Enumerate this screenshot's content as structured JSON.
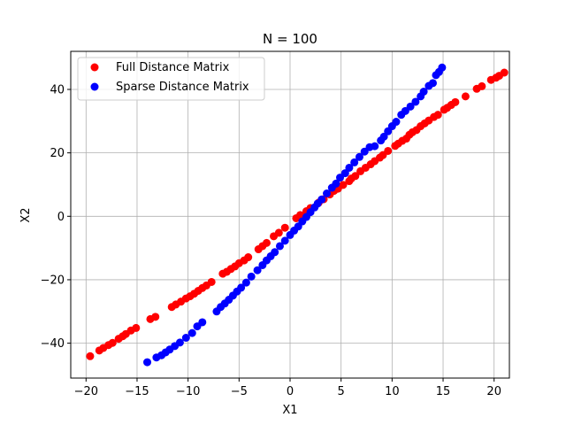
{
  "chart_data": {
    "type": "scatter",
    "title": "N = 100",
    "xlabel": "X1",
    "ylabel": "X2",
    "xlim": [
      -21.5,
      21.5
    ],
    "ylim": [
      -51,
      52
    ],
    "xticks": [
      -20,
      -15,
      -10,
      -5,
      0,
      5,
      10,
      15,
      20
    ],
    "yticks": [
      -40,
      -20,
      0,
      20,
      40
    ],
    "grid": true,
    "legend_position": "upper-left",
    "series": [
      {
        "name": "Full Distance Matrix",
        "color": "#ff0000",
        "points": [
          [
            -19.6,
            -44.1
          ],
          [
            -18.7,
            -42.3
          ],
          [
            -18.3,
            -41.5
          ],
          [
            -17.8,
            -40.6
          ],
          [
            -17.4,
            -39.9
          ],
          [
            -16.8,
            -38.6
          ],
          [
            -16.4,
            -37.8
          ],
          [
            -16.1,
            -37.1
          ],
          [
            -15.6,
            -36.0
          ],
          [
            -15.1,
            -35.2
          ],
          [
            -13.7,
            -32.4
          ],
          [
            -13.2,
            -31.7
          ],
          [
            -11.6,
            -28.6
          ],
          [
            -11.2,
            -27.8
          ],
          [
            -10.7,
            -26.9
          ],
          [
            -10.2,
            -25.9
          ],
          [
            -9.8,
            -25.2
          ],
          [
            -9.4,
            -24.4
          ],
          [
            -9.0,
            -23.5
          ],
          [
            -8.6,
            -22.6
          ],
          [
            -8.2,
            -21.8
          ],
          [
            -7.7,
            -20.7
          ],
          [
            -6.6,
            -18.1
          ],
          [
            -6.2,
            -17.5
          ],
          [
            -5.8,
            -16.6
          ],
          [
            -5.4,
            -15.8
          ],
          [
            -5.0,
            -14.8
          ],
          [
            -4.5,
            -13.9
          ],
          [
            -4.1,
            -12.9
          ],
          [
            -3.1,
            -10.4
          ],
          [
            -2.7,
            -9.4
          ],
          [
            -2.3,
            -8.4
          ],
          [
            -1.6,
            -6.3
          ],
          [
            -1.1,
            -5.2
          ],
          [
            -0.5,
            -3.6
          ],
          [
            0.6,
            -0.6
          ],
          [
            1.0,
            0.4
          ],
          [
            1.6,
            1.6
          ],
          [
            2.0,
            2.6
          ],
          [
            2.8,
            4.3
          ],
          [
            3.3,
            5.4
          ],
          [
            3.9,
            6.9
          ],
          [
            4.3,
            8.0
          ],
          [
            4.7,
            8.7
          ],
          [
            5.2,
            9.9
          ],
          [
            5.8,
            11.1
          ],
          [
            6.0,
            11.9
          ],
          [
            6.4,
            12.7
          ],
          [
            6.9,
            14.2
          ],
          [
            7.4,
            15.3
          ],
          [
            7.9,
            16.4
          ],
          [
            8.3,
            17.4
          ],
          [
            8.8,
            18.5
          ],
          [
            9.1,
            19.3
          ],
          [
            9.6,
            20.6
          ],
          [
            10.3,
            22.2
          ],
          [
            10.6,
            22.9
          ],
          [
            11.0,
            23.8
          ],
          [
            11.4,
            24.5
          ],
          [
            11.7,
            25.7
          ],
          [
            12.0,
            26.5
          ],
          [
            12.4,
            27.2
          ],
          [
            12.8,
            28.4
          ],
          [
            13.2,
            29.3
          ],
          [
            13.6,
            30.2
          ],
          [
            14.1,
            31.3
          ],
          [
            14.5,
            32.0
          ],
          [
            15.1,
            33.6
          ],
          [
            15.4,
            34.2
          ],
          [
            15.8,
            35.1
          ],
          [
            16.2,
            36.0
          ],
          [
            17.2,
            37.8
          ],
          [
            18.3,
            40.2
          ],
          [
            18.8,
            41.0
          ],
          [
            19.7,
            43.0
          ],
          [
            20.2,
            43.7
          ],
          [
            20.5,
            44.3
          ],
          [
            21.0,
            45.3
          ]
        ]
      },
      {
        "name": "Sparse Distance Matrix",
        "color": "#0000ff",
        "points": [
          [
            -14.0,
            -46.0
          ],
          [
            -13.1,
            -44.5
          ],
          [
            -12.6,
            -43.8
          ],
          [
            -12.2,
            -42.9
          ],
          [
            -11.8,
            -42.0
          ],
          [
            -11.3,
            -40.9
          ],
          [
            -10.8,
            -39.8
          ],
          [
            -10.2,
            -38.3
          ],
          [
            -9.6,
            -36.8
          ],
          [
            -9.1,
            -34.7
          ],
          [
            -8.6,
            -33.4
          ],
          [
            -7.2,
            -30.0
          ],
          [
            -6.8,
            -28.6
          ],
          [
            -6.4,
            -27.5
          ],
          [
            -6.0,
            -26.3
          ],
          [
            -5.6,
            -25.0
          ],
          [
            -5.2,
            -23.7
          ],
          [
            -4.8,
            -22.5
          ],
          [
            -4.3,
            -20.9
          ],
          [
            -3.8,
            -19.0
          ],
          [
            -3.2,
            -17.0
          ],
          [
            -2.7,
            -15.4
          ],
          [
            -2.3,
            -13.9
          ],
          [
            -1.9,
            -12.6
          ],
          [
            -1.5,
            -11.3
          ],
          [
            -1.0,
            -9.4
          ],
          [
            -0.5,
            -7.7
          ],
          [
            0.0,
            -5.9
          ],
          [
            0.4,
            -4.5
          ],
          [
            0.8,
            -3.2
          ],
          [
            1.2,
            -1.6
          ],
          [
            1.6,
            -0.2
          ],
          [
            2.0,
            1.3
          ],
          [
            2.4,
            2.8
          ],
          [
            2.7,
            4.0
          ],
          [
            3.1,
            5.3
          ],
          [
            3.6,
            7.2
          ],
          [
            4.1,
            9.0
          ],
          [
            4.5,
            10.3
          ],
          [
            4.9,
            12.2
          ],
          [
            5.4,
            13.6
          ],
          [
            5.8,
            15.3
          ],
          [
            6.3,
            17.0
          ],
          [
            6.8,
            18.7
          ],
          [
            7.3,
            20.4
          ],
          [
            7.8,
            21.8
          ],
          [
            8.3,
            22.1
          ],
          [
            8.9,
            23.9
          ],
          [
            9.2,
            25.1
          ],
          [
            9.6,
            26.8
          ],
          [
            10.0,
            28.4
          ],
          [
            10.4,
            29.8
          ],
          [
            10.9,
            32.0
          ],
          [
            11.3,
            33.2
          ],
          [
            11.8,
            34.6
          ],
          [
            12.3,
            36.1
          ],
          [
            12.8,
            37.8
          ],
          [
            13.1,
            39.3
          ],
          [
            13.6,
            41.1
          ],
          [
            14.0,
            42.0
          ],
          [
            14.3,
            44.5
          ],
          [
            14.6,
            45.5
          ],
          [
            14.9,
            46.9
          ]
        ]
      }
    ]
  }
}
